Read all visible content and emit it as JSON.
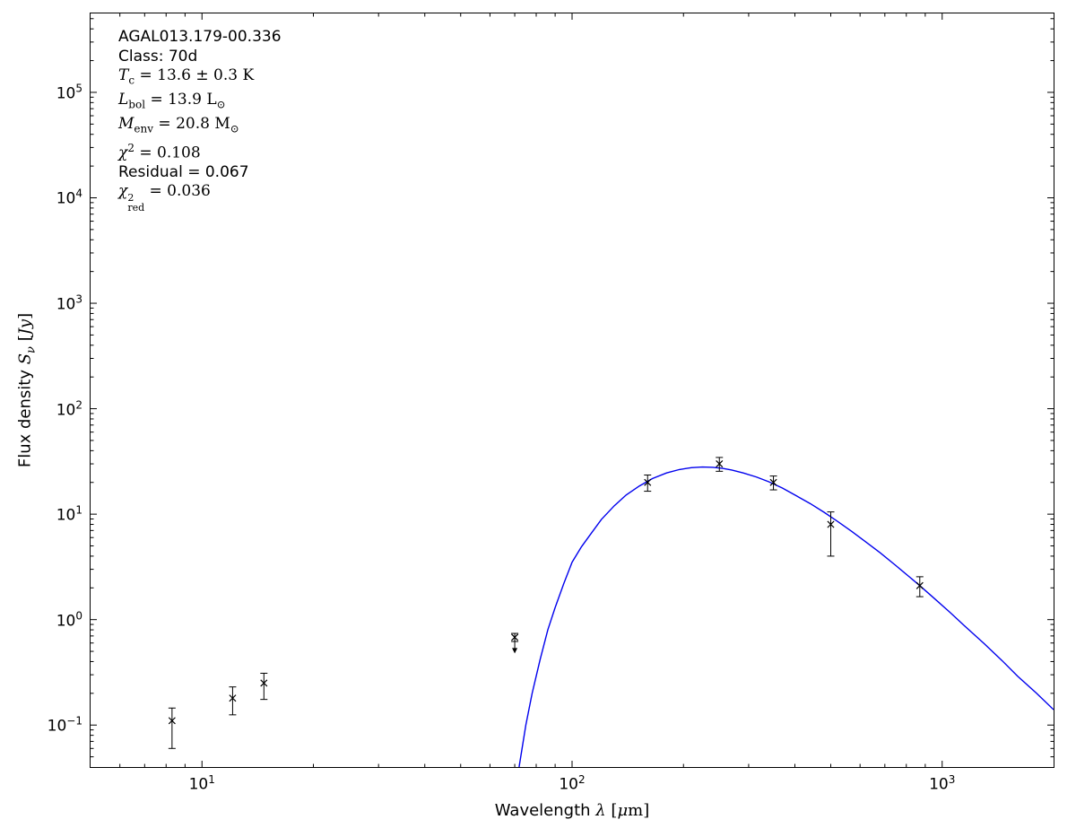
{
  "annotation": {
    "source_name": "AGAL013.179-00.336",
    "class_line": "Class: 70d",
    "tc": {
      "var": "T",
      "sub": "c",
      "rest": " = 13.6 ± 0.3 K"
    },
    "lbol": {
      "var": "L",
      "sub": "bol",
      "rest": " = 13.9 ",
      "unit": "L",
      "unit_sub": "⊙"
    },
    "menv": {
      "var": "M",
      "sub": "env",
      "rest": " = 20.8 ",
      "unit": "M",
      "unit_sub": "⊙"
    },
    "chi2": {
      "var": "χ",
      "sup": "2",
      "rest": " = 0.108"
    },
    "residual": "Residual = 0.067",
    "chi2red": {
      "var": "χ",
      "sup": "2",
      "sub": "red",
      "rest": " = 0.036"
    }
  },
  "labels": {
    "x_pre": "Wavelength ",
    "x_lambda": "λ",
    "x_open": " [",
    "x_mu": "μ",
    "x_close": "m]",
    "y_pre": "Flux density ",
    "y_var": "S",
    "y_sub": "ν",
    "y_open": " [",
    "y_unit": "Jy",
    "y_close": "]"
  },
  "chart_data": {
    "type": "line+scatter",
    "title": "",
    "xlabel": "Wavelength λ [μm]",
    "ylabel": "Flux density Sν [Jy]",
    "tick_label_base": "10",
    "x_axis": {
      "scale": "log",
      "lim": [
        5,
        2000
      ],
      "major_ticks": [
        10,
        100,
        1000
      ]
    },
    "y_axis": {
      "scale": "log",
      "lim": [
        0.04,
        560000
      ],
      "major_ticks": [
        0.1,
        1,
        10,
        100,
        1000,
        10000,
        100000
      ]
    },
    "points": {
      "marker": "x",
      "color": "#000000",
      "data": [
        {
          "wavelength_um": 8.3,
          "flux_jy": 0.11,
          "err_minus": 0.05,
          "err_plus": 0.035,
          "upper_limit": false
        },
        {
          "wavelength_um": 12.1,
          "flux_jy": 0.18,
          "err_minus": 0.055,
          "err_plus": 0.05,
          "upper_limit": false
        },
        {
          "wavelength_um": 14.7,
          "flux_jy": 0.25,
          "err_minus": 0.075,
          "err_plus": 0.06,
          "upper_limit": false
        },
        {
          "wavelength_um": 70,
          "flux_jy": 0.68,
          "err_minus": 0.06,
          "err_plus": 0.06,
          "upper_limit": true
        },
        {
          "wavelength_um": 160,
          "flux_jy": 20.0,
          "err_minus": 3.5,
          "err_plus": 3.5,
          "upper_limit": false
        },
        {
          "wavelength_um": 250,
          "flux_jy": 30.0,
          "err_minus": 4.5,
          "err_plus": 4.5,
          "upper_limit": false
        },
        {
          "wavelength_um": 350,
          "flux_jy": 20.0,
          "err_minus": 3.0,
          "err_plus": 3.0,
          "upper_limit": false
        },
        {
          "wavelength_um": 500,
          "flux_jy": 8.0,
          "err_minus": 4.0,
          "err_plus": 2.5,
          "upper_limit": false
        },
        {
          "wavelength_um": 870,
          "flux_jy": 2.1,
          "err_minus": 0.45,
          "err_plus": 0.45,
          "upper_limit": false
        }
      ]
    },
    "model_curve": {
      "color": "#0000ee",
      "points": [
        [
          70,
          0.022
        ],
        [
          72,
          0.041
        ],
        [
          75,
          0.1
        ],
        [
          78,
          0.2
        ],
        [
          82,
          0.42
        ],
        [
          86,
          0.8
        ],
        [
          90,
          1.3
        ],
        [
          95,
          2.2
        ],
        [
          100,
          3.5
        ],
        [
          106,
          4.9
        ],
        [
          112,
          6.4
        ],
        [
          120,
          8.9
        ],
        [
          130,
          12.0
        ],
        [
          140,
          15.2
        ],
        [
          152,
          18.5
        ],
        [
          165,
          21.8
        ],
        [
          180,
          24.6
        ],
        [
          195,
          26.5
        ],
        [
          210,
          27.6
        ],
        [
          225,
          28.0
        ],
        [
          240,
          27.8
        ],
        [
          255,
          27.2
        ],
        [
          270,
          26.2
        ],
        [
          290,
          24.6
        ],
        [
          315,
          22.5
        ],
        [
          340,
          20.3
        ],
        [
          370,
          17.7
        ],
        [
          400,
          15.2
        ],
        [
          440,
          12.6
        ],
        [
          480,
          10.4
        ],
        [
          520,
          8.6
        ],
        [
          570,
          6.85
        ],
        [
          620,
          5.5
        ],
        [
          680,
          4.3
        ],
        [
          750,
          3.25
        ],
        [
          820,
          2.5
        ],
        [
          870,
          2.1
        ],
        [
          950,
          1.6
        ],
        [
          1050,
          1.17
        ],
        [
          1150,
          0.87
        ],
        [
          1300,
          0.59
        ],
        [
          1450,
          0.41
        ],
        [
          1600,
          0.29
        ],
        [
          1800,
          0.2
        ],
        [
          2000,
          0.14
        ]
      ]
    }
  }
}
